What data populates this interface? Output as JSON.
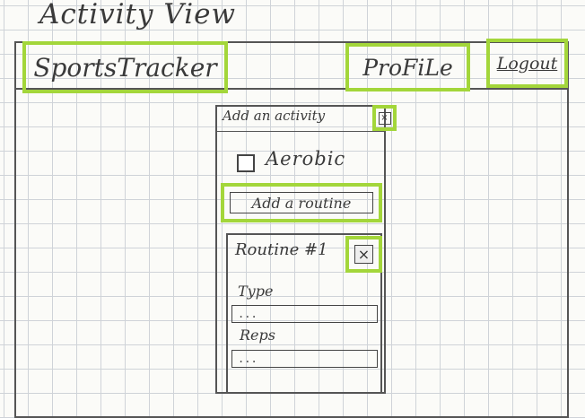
{
  "page": {
    "title": "Activity View"
  },
  "header": {
    "brand": "SportsTracker",
    "profile_label": "ProFiLe",
    "logout_label": "Logout"
  },
  "dialog": {
    "title": "Add an activity",
    "close_glyph": "×",
    "aerobic": {
      "label": "Aerobic",
      "checked": false
    },
    "add_routine_label": "Add a routine",
    "routine": {
      "title": "Routine #1",
      "close_glyph": "×",
      "fields": {
        "type_label": "Type",
        "type_placeholder": "...",
        "reps_label": "Reps",
        "reps_placeholder": "..."
      }
    }
  },
  "colors": {
    "highlight": "#a3d63a",
    "grid": "#cfd3d8",
    "ink": "#444444"
  }
}
